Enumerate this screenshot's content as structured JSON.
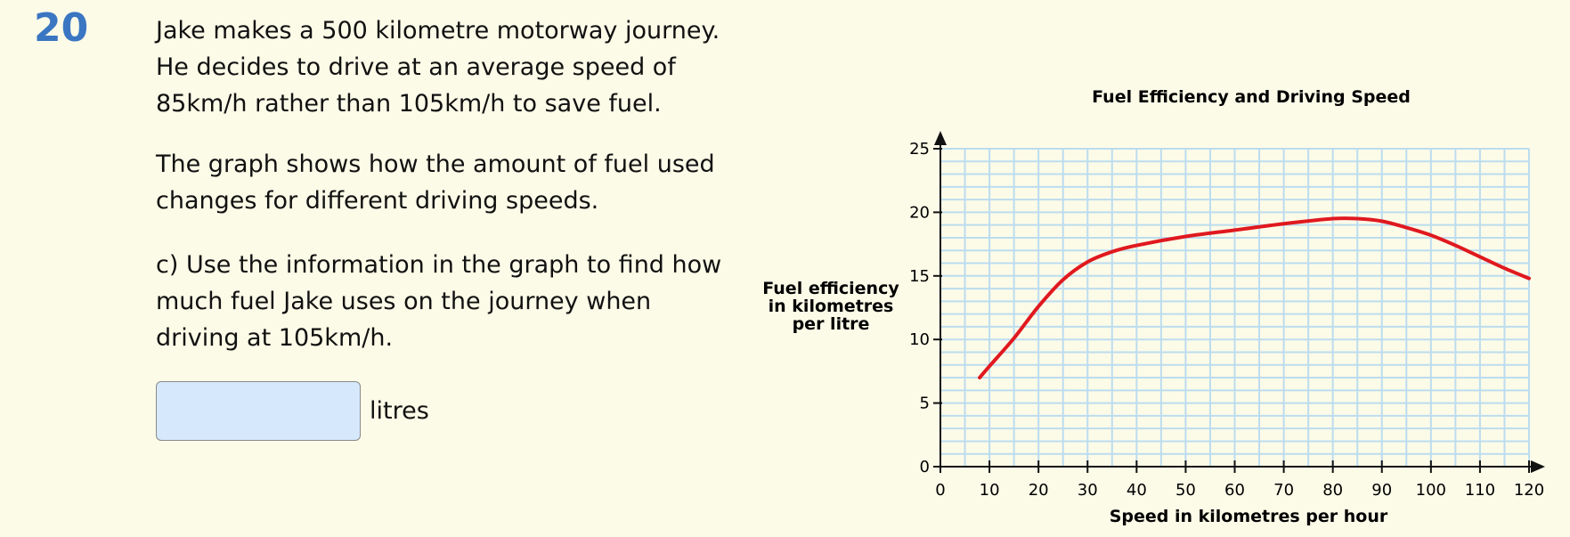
{
  "question": {
    "number": "20",
    "intro_lines": [
      "Jake makes a 500 kilometre motorway journey.",
      "He decides to drive at an average speed of",
      "85km/h rather than 105km/h to save fuel."
    ],
    "graph_lines": [
      "The graph shows how the amount of fuel used",
      "changes for different driving speeds."
    ],
    "task_lines": [
      "c) Use the information in the graph to find how",
      "much fuel Jake uses on the journey when",
      "driving at 105km/h."
    ]
  },
  "answer": {
    "value": "",
    "unit": "litres"
  },
  "chart_data": {
    "type": "line",
    "title": "Fuel Efficiency and Driving Speed",
    "xlabel": "Speed in kilometres per hour",
    "ylabel": [
      "Fuel efficiency",
      "in kilometres",
      "per litre"
    ],
    "xlim": [
      0,
      120
    ],
    "ylim": [
      0,
      25
    ],
    "x_ticks": [
      0,
      10,
      20,
      30,
      40,
      50,
      60,
      70,
      80,
      90,
      100,
      110,
      120
    ],
    "y_ticks": [
      0,
      5,
      10,
      15,
      20,
      25
    ],
    "grid": true,
    "grid_x_step": 5,
    "grid_y_step": 1,
    "line_color": "#e0191f",
    "grid_color": "#bcdcef",
    "series": [
      {
        "x": [
          8,
          10,
          15,
          20,
          25,
          30,
          35,
          40,
          50,
          60,
          70,
          80,
          85,
          90,
          95,
          100,
          105,
          110,
          115,
          120
        ],
        "y": [
          7.0,
          7.9,
          10.1,
          12.6,
          14.7,
          16.1,
          16.9,
          17.4,
          18.1,
          18.6,
          19.1,
          19.5,
          19.5,
          19.3,
          18.8,
          18.2,
          17.4,
          16.5,
          15.6,
          14.8
        ]
      }
    ]
  }
}
